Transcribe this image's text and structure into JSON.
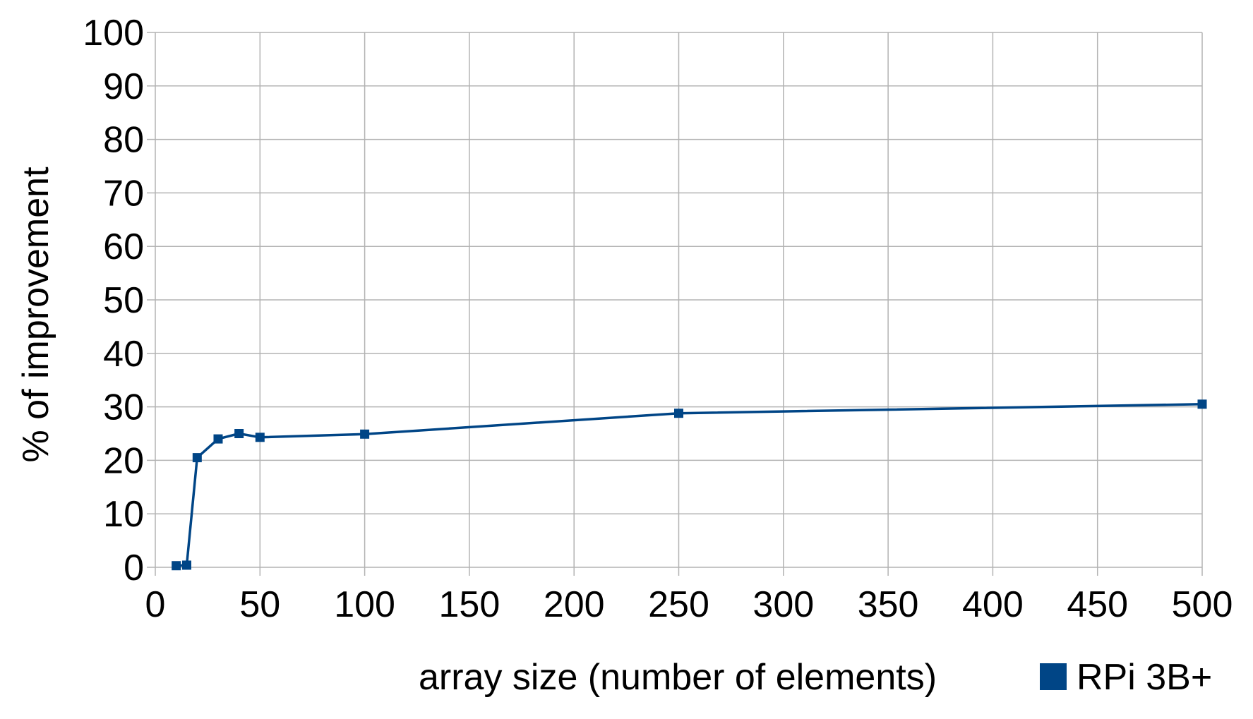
{
  "chart_data": {
    "type": "line",
    "xlabel": "array size (number of elements)",
    "ylabel": "% of improvement",
    "xlim": [
      0,
      500
    ],
    "ylim": [
      0,
      100
    ],
    "x_ticks": [
      0,
      50,
      100,
      150,
      200,
      250,
      300,
      350,
      400,
      450,
      500
    ],
    "y_ticks": [
      0,
      10,
      20,
      30,
      40,
      50,
      60,
      70,
      80,
      90,
      100
    ],
    "grid": true,
    "legend_position": "bottom-right",
    "series": [
      {
        "name": "RPi 3B+",
        "color": "#004586",
        "marker": "square",
        "x": [
          10,
          15,
          20,
          30,
          40,
          50,
          100,
          250,
          500
        ],
        "y": [
          0.3,
          0.4,
          20.5,
          24.0,
          25.0,
          24.3,
          24.9,
          28.8,
          30.5
        ]
      }
    ]
  }
}
